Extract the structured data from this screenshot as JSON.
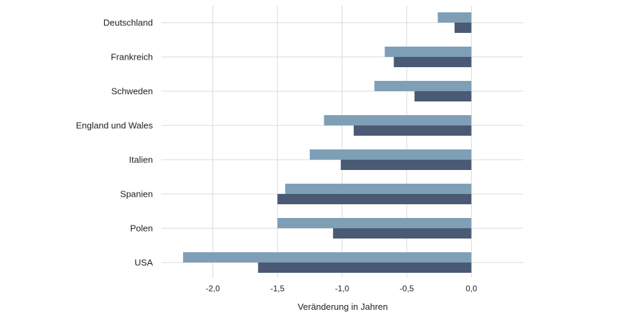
{
  "chart_data": {
    "type": "bar",
    "orientation": "horizontal",
    "categories": [
      "Deutschland",
      "Frankreich",
      "Schweden",
      "England und Wales",
      "Italien",
      "Spanien",
      "Polen",
      "USA"
    ],
    "series": [
      {
        "color": "#7f9fb7",
        "values": [
          -0.26,
          -0.67,
          -0.75,
          -1.14,
          -1.25,
          -1.44,
          -1.5,
          -2.23
        ]
      },
      {
        "color": "#4a5a74",
        "values": [
          -0.13,
          -0.6,
          -0.44,
          -0.91,
          -1.01,
          -1.5,
          -1.07,
          -1.65
        ]
      }
    ],
    "title": "",
    "xlabel": "Veränderung in Jahren",
    "ylabel": "",
    "xlim": [
      -2.4,
      0.4
    ],
    "xticks": [
      -2.0,
      -1.5,
      -1.0,
      -0.5,
      0.0
    ],
    "xtick_labels": [
      "-2,0",
      "-1,5",
      "-1,0",
      "-0,5",
      "0,0"
    ],
    "grid": true,
    "legend": "none"
  }
}
